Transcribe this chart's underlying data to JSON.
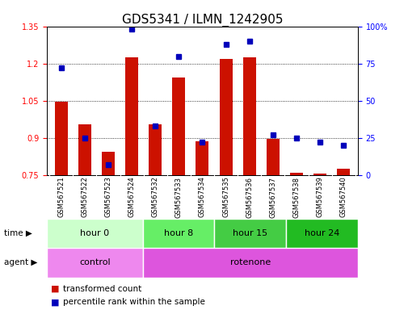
{
  "title": "GDS5341 / ILMN_1242905",
  "samples": [
    "GSM567521",
    "GSM567522",
    "GSM567523",
    "GSM567524",
    "GSM567532",
    "GSM567533",
    "GSM567534",
    "GSM567535",
    "GSM567536",
    "GSM567537",
    "GSM567538",
    "GSM567539",
    "GSM567540"
  ],
  "red_values": [
    1.045,
    0.955,
    0.845,
    1.225,
    0.955,
    1.145,
    0.885,
    1.22,
    1.225,
    0.895,
    0.76,
    0.755,
    0.775
  ],
  "blue_values": [
    72,
    25,
    7,
    98,
    33,
    80,
    22,
    88,
    90,
    27,
    25,
    22,
    20
  ],
  "ylim_left": [
    0.75,
    1.35
  ],
  "ylim_right": [
    0,
    100
  ],
  "yticks_left": [
    0.75,
    0.9,
    1.05,
    1.2,
    1.35
  ],
  "yticks_right": [
    0,
    25,
    50,
    75,
    100
  ],
  "ytick_labels_right": [
    "0",
    "25",
    "50",
    "75",
    "100%"
  ],
  "bar_color": "#cc1100",
  "dot_color": "#0000bb",
  "base_value": 0.75,
  "time_groups": [
    {
      "label": "hour 0",
      "start": 0,
      "end": 4,
      "color": "#ccffcc"
    },
    {
      "label": "hour 8",
      "start": 4,
      "end": 7,
      "color": "#66ee66"
    },
    {
      "label": "hour 15",
      "start": 7,
      "end": 10,
      "color": "#44cc44"
    },
    {
      "label": "hour 24",
      "start": 10,
      "end": 13,
      "color": "#22bb22"
    }
  ],
  "agent_groups": [
    {
      "label": "control",
      "start": 0,
      "end": 4,
      "color": "#ee88ee"
    },
    {
      "label": "rotenone",
      "start": 4,
      "end": 13,
      "color": "#dd55dd"
    }
  ],
  "legend_red": "transformed count",
  "legend_blue": "percentile rank within the sample",
  "bg_color": "#ffffff",
  "plot_bg": "#ffffff",
  "tick_area_bg": "#cccccc",
  "fontsize_title": 11,
  "fontsize_ticks": 7,
  "fontsize_samples": 6,
  "fontsize_group": 8,
  "fontsize_legend": 7.5
}
